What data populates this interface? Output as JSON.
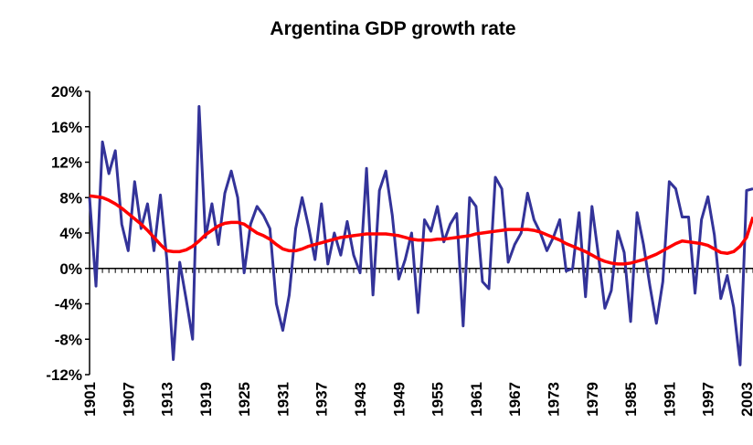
{
  "chart_data": {
    "type": "line",
    "title": "Argentina GDP growth rate",
    "x": [
      1901,
      1902,
      1903,
      1904,
      1905,
      1906,
      1907,
      1908,
      1909,
      1910,
      1911,
      1912,
      1913,
      1914,
      1915,
      1916,
      1917,
      1918,
      1919,
      1920,
      1921,
      1922,
      1923,
      1924,
      1925,
      1926,
      1927,
      1928,
      1929,
      1930,
      1931,
      1932,
      1933,
      1934,
      1935,
      1936,
      1937,
      1938,
      1939,
      1940,
      1941,
      1942,
      1943,
      1944,
      1945,
      1946,
      1947,
      1948,
      1949,
      1950,
      1951,
      1952,
      1953,
      1954,
      1955,
      1956,
      1957,
      1958,
      1959,
      1960,
      1961,
      1962,
      1963,
      1964,
      1965,
      1966,
      1967,
      1968,
      1969,
      1970,
      1971,
      1972,
      1973,
      1974,
      1975,
      1976,
      1977,
      1978,
      1979,
      1980,
      1981,
      1982,
      1983,
      1984,
      1985,
      1986,
      1987,
      1988,
      1989,
      1990,
      1991,
      1992,
      1993,
      1994,
      1995,
      1996,
      1997,
      1998,
      1999,
      2000,
      2001,
      2002,
      2003,
      2004
    ],
    "series": [
      {
        "color": "#333399",
        "values": [
          8,
          -2,
          14.3,
          10.7,
          13.3,
          5,
          2,
          9.8,
          4.5,
          7.3,
          2,
          8.3,
          1,
          -10.3,
          0.7,
          -3.5,
          -8,
          18.3,
          3.5,
          7.3,
          2.7,
          8.5,
          11,
          8,
          -0.5,
          5,
          7,
          6,
          4.5,
          -4,
          -7,
          -3,
          4.5,
          8,
          4.7,
          1,
          7.3,
          0.5,
          4,
          1.5,
          5.3,
          1.5,
          -0.5,
          11.3,
          -3,
          8.8,
          11,
          6,
          -1.2,
          1,
          4,
          -5,
          5.5,
          4.2,
          7,
          3,
          5,
          6.2,
          -6.5,
          8,
          7,
          -1.5,
          -2.3,
          10.3,
          9,
          0.7,
          2.7,
          4,
          8.5,
          5.5,
          4,
          2,
          3.5,
          5.5,
          -0.3,
          0,
          6.3,
          -3.2,
          7,
          1.5,
          -4.5,
          -2.5,
          4.2,
          1.8,
          -6,
          6.3,
          2.7,
          -2,
          -6.2,
          -1.5,
          9.8,
          9,
          5.8,
          5.8,
          -2.8,
          5.5,
          8.1,
          3.8,
          -3.4,
          -0.8,
          -4.4,
          -10.9,
          8.8,
          9
        ]
      },
      {
        "color": "#ff0000",
        "values": [
          8.2,
          8.1,
          8.0,
          7.7,
          7.3,
          6.8,
          6.2,
          5.6,
          5.0,
          4.3,
          3.5,
          2.7,
          2.0,
          1.9,
          1.9,
          2.1,
          2.5,
          3.1,
          3.8,
          4.3,
          4.8,
          5.1,
          5.2,
          5.2,
          5.0,
          4.5,
          4.0,
          3.7,
          3.3,
          2.7,
          2.2,
          2.0,
          2.0,
          2.2,
          2.5,
          2.7,
          2.9,
          3.1,
          3.3,
          3.5,
          3.6,
          3.7,
          3.8,
          3.9,
          3.9,
          3.9,
          3.9,
          3.8,
          3.7,
          3.5,
          3.3,
          3.2,
          3.2,
          3.2,
          3.3,
          3.3,
          3.4,
          3.5,
          3.6,
          3.7,
          3.9,
          4.0,
          4.1,
          4.2,
          4.3,
          4.4,
          4.4,
          4.4,
          4.4,
          4.3,
          4.1,
          3.8,
          3.5,
          3.2,
          2.8,
          2.5,
          2.2,
          1.9,
          1.5,
          1.1,
          0.8,
          0.6,
          0.5,
          0.5,
          0.6,
          0.8,
          1.0,
          1.3,
          1.6,
          2.0,
          2.4,
          2.8,
          3.1,
          3.0,
          2.9,
          2.8,
          2.6,
          2.2,
          1.8,
          1.7,
          1.9,
          2.5,
          3.5,
          5.8
        ]
      }
    ],
    "xlim": [
      1901,
      2004
    ],
    "xticks": [
      1901,
      1907,
      1913,
      1919,
      1925,
      1931,
      1937,
      1943,
      1949,
      1955,
      1961,
      1967,
      1973,
      1979,
      1985,
      1991,
      1997,
      2003
    ],
    "ylim": [
      -12,
      20
    ],
    "yticks": [
      {
        "value": -12,
        "label": "-12%"
      },
      {
        "value": -8,
        "label": "-8%"
      },
      {
        "value": -4,
        "label": "-4%"
      },
      {
        "value": 0,
        "label": "0%"
      },
      {
        "value": 4,
        "label": "4%"
      },
      {
        "value": 8,
        "label": "8%"
      },
      {
        "value": 12,
        "label": "12%"
      },
      {
        "value": 16,
        "label": "16%"
      },
      {
        "value": 20,
        "label": "20%"
      }
    ]
  }
}
